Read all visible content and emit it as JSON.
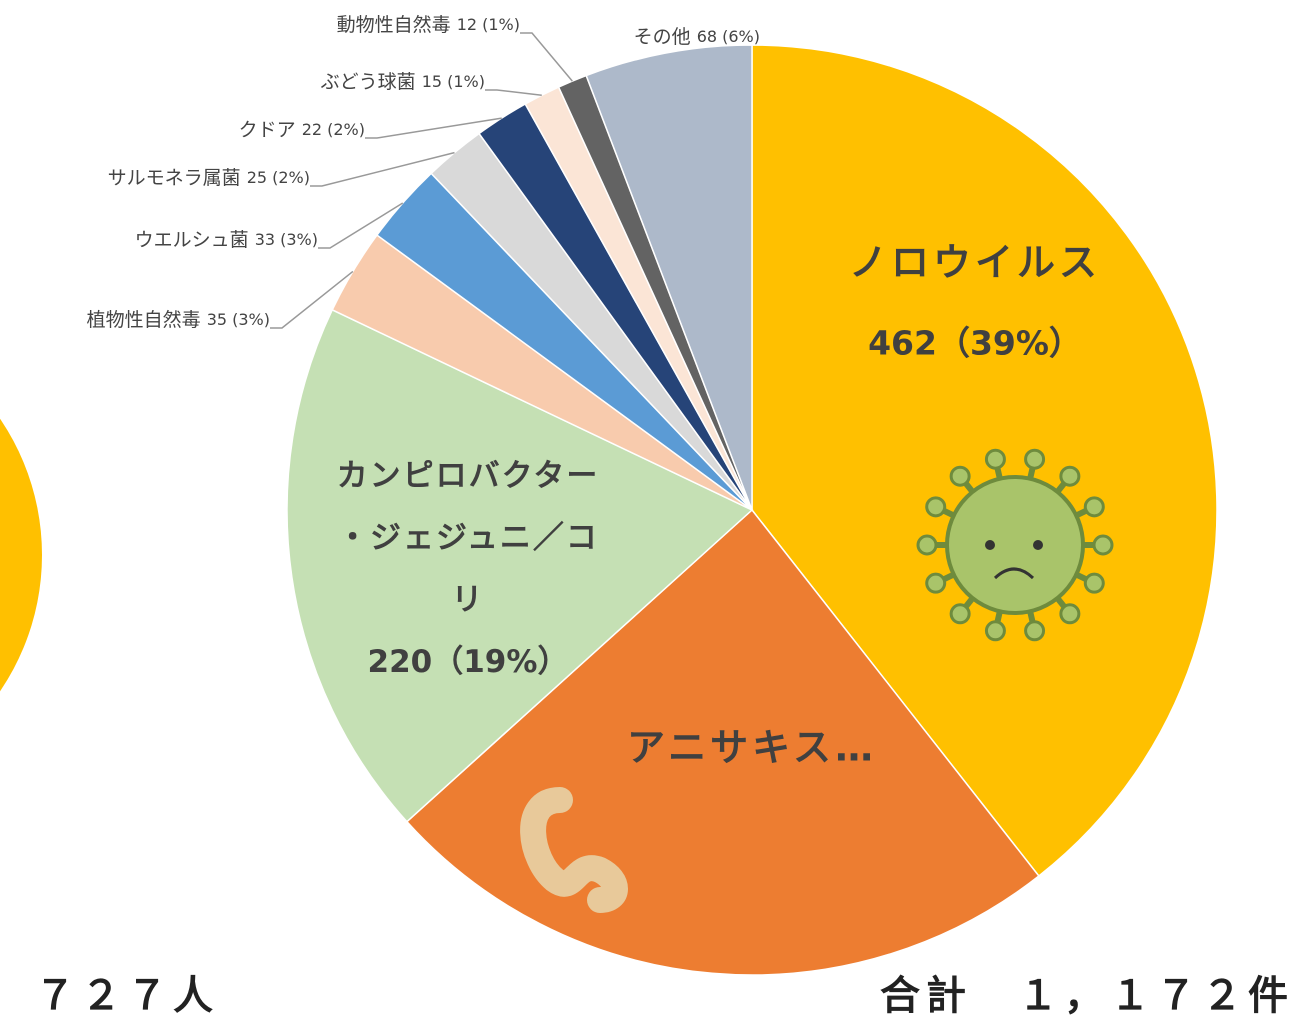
{
  "chart_data": {
    "type": "pie",
    "categories": [
      "ノロウイルス",
      "アニサキス…",
      "カンピロバクター・ジェジュニ／コリ",
      "植物性自然毒",
      "ウエルシュ菌",
      "サルモネラ属菌",
      "クドア",
      "ぶどう球菌",
      "動物性自然毒",
      "その他"
    ],
    "values": [
      462,
      280,
      220,
      35,
      33,
      25,
      22,
      15,
      12,
      68
    ],
    "value_labels": [
      "462（39%）",
      null,
      "220（19%）",
      "35 (3%)",
      "33 (3%)",
      "25 (2%)",
      "22 (2%)",
      "15 (1%)",
      "12 (1%)",
      "68 (6%)"
    ],
    "colors": [
      "#FFC000",
      "#ED7D31",
      "#C5E0B4",
      "#F8CBAD",
      "#5B9BD5",
      "#D9D9D9",
      "#264478",
      "#FBE5D6",
      "#636363",
      "#ADB9CA"
    ],
    "annotations": [
      "７２７人",
      "合計　１，１７２件"
    ]
  }
}
